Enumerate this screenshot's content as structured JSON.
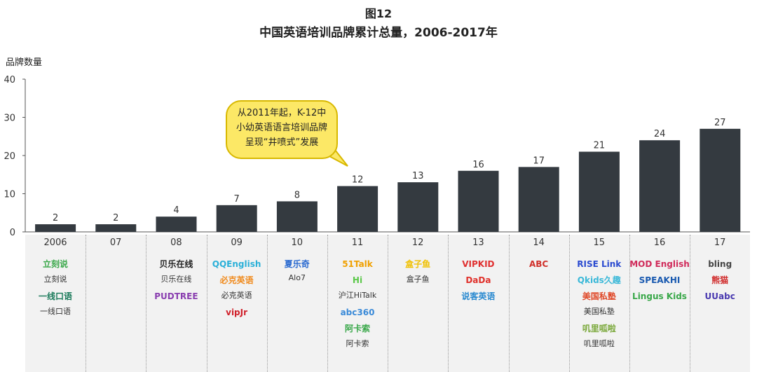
{
  "title": "图12",
  "subtitle": "中国英语培训品牌累计总量，2006-2017年",
  "colors": {
    "bar": "#343a40",
    "bubble": "#fce866",
    "axis": "#555555"
  },
  "chart_data": {
    "type": "bar",
    "title": "中国英语培训品牌累计总量，2006-2017年",
    "ylabel": "品牌数量",
    "xlabel": "",
    "ylim": [
      0,
      40
    ],
    "yticks": [
      0,
      10,
      20,
      30,
      40
    ],
    "categories": [
      "2006",
      "07",
      "08",
      "09",
      "10",
      "11",
      "12",
      "13",
      "14",
      "15",
      "16",
      "17"
    ],
    "values": [
      2,
      2,
      4,
      7,
      8,
      12,
      13,
      16,
      17,
      21,
      24,
      27
    ],
    "annotation": "从2011年起，K-12中小幼英语语言培训品牌呈现“井喷式”发展"
  },
  "annotation_lines": [
    "从2011年起，K-12中",
    "小幼英语语言培训品牌",
    "呈现“井喷式”发展"
  ],
  "brands": [
    {
      "year": "2006",
      "items": [
        {
          "logo": "立刻说",
          "name": "立刻说",
          "color": "#3aa84a"
        },
        {
          "logo": "一线口语",
          "name": "一线口语",
          "color": "#1a7a5a"
        }
      ]
    },
    {
      "year": "07",
      "items": []
    },
    {
      "year": "08",
      "items": [
        {
          "logo": "贝乐在线",
          "name": "贝乐在线",
          "color": "#222222"
        },
        {
          "logo": "PUDTREE",
          "name": "",
          "color": "#8a3fb0"
        }
      ]
    },
    {
      "year": "09",
      "items": [
        {
          "logo": "QQEnglish",
          "name": "",
          "color": "#2ab0d8"
        },
        {
          "logo": "必克英语",
          "name": "必克英语",
          "color": "#f08a1c"
        },
        {
          "logo": "vipJr",
          "name": "",
          "color": "#d0202a"
        }
      ]
    },
    {
      "year": "10",
      "items": [
        {
          "logo": "夏乐奇",
          "name": "Alo7",
          "color": "#2a6ad0"
        }
      ]
    },
    {
      "year": "11",
      "items": [
        {
          "logo": "51Talk",
          "name": "",
          "color": "#f0a000"
        },
        {
          "logo": "Hi",
          "name": "沪江HiTalk",
          "color": "#5cc84a"
        },
        {
          "logo": "abc360",
          "name": "",
          "color": "#3a8ad8"
        },
        {
          "logo": "阿卡索",
          "name": "阿卡索",
          "color": "#3aa84a"
        }
      ]
    },
    {
      "year": "12",
      "items": [
        {
          "logo": "盒子鱼",
          "name": "盒子鱼",
          "color": "#f0c000"
        }
      ]
    },
    {
      "year": "13",
      "items": [
        {
          "logo": "VIPKID",
          "name": "",
          "color": "#e03030"
        },
        {
          "logo": "DaDa",
          "name": "",
          "color": "#e0302a"
        },
        {
          "logo": "说客英语",
          "name": "",
          "color": "#2a8ad0"
        }
      ]
    },
    {
      "year": "14",
      "items": [
        {
          "logo": "ABC",
          "name": "",
          "color": "#d0302a"
        }
      ]
    },
    {
      "year": "15",
      "items": [
        {
          "logo": "RISE Link",
          "name": "",
          "color": "#2a4ad0"
        },
        {
          "logo": "Qkids久趣",
          "name": "",
          "color": "#3ab8d8"
        },
        {
          "logo": "美国私塾",
          "name": "美国私塾",
          "color": "#e04a2a"
        },
        {
          "logo": "叽里呱啦",
          "name": "叽里呱啦",
          "color": "#7aa83a"
        }
      ]
    },
    {
      "year": "16",
      "items": [
        {
          "logo": "MOD English",
          "name": "",
          "color": "#d02a5a"
        },
        {
          "logo": "SPEAKHI",
          "name": "",
          "color": "#1a5ab0"
        },
        {
          "logo": "Lingus Kids",
          "name": "",
          "color": "#3aa84a"
        }
      ]
    },
    {
      "year": "17",
      "items": [
        {
          "logo": "bling",
          "name": "",
          "color": "#444444"
        },
        {
          "logo": "熊猫",
          "name": "",
          "color": "#d02a2a"
        },
        {
          "logo": "UUabc",
          "name": "",
          "color": "#4a3ab0"
        }
      ]
    }
  ]
}
